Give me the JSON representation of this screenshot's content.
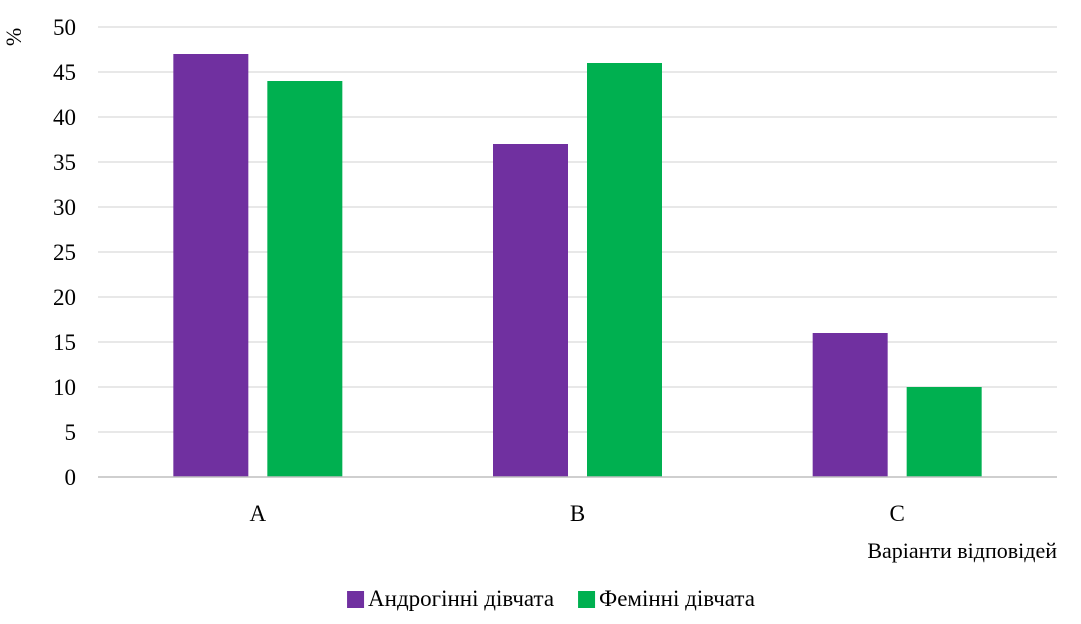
{
  "chart_data": {
    "type": "bar",
    "title": "",
    "xlabel": "Варіанти відповідей",
    "ylabel": "%",
    "categories": [
      "A",
      "B",
      "C"
    ],
    "ylim": [
      0,
      50
    ],
    "yticks": [
      0,
      5,
      10,
      15,
      20,
      25,
      30,
      35,
      40,
      45,
      50
    ],
    "grid": true,
    "legend_position": "bottom",
    "series": [
      {
        "name": "Андрогінні дівчата",
        "values": [
          47,
          37,
          16
        ],
        "color": "#7030a0"
      },
      {
        "name": "Фемінні дівчата",
        "values": [
          44,
          46,
          10
        ],
        "color": "#00b050"
      }
    ]
  }
}
